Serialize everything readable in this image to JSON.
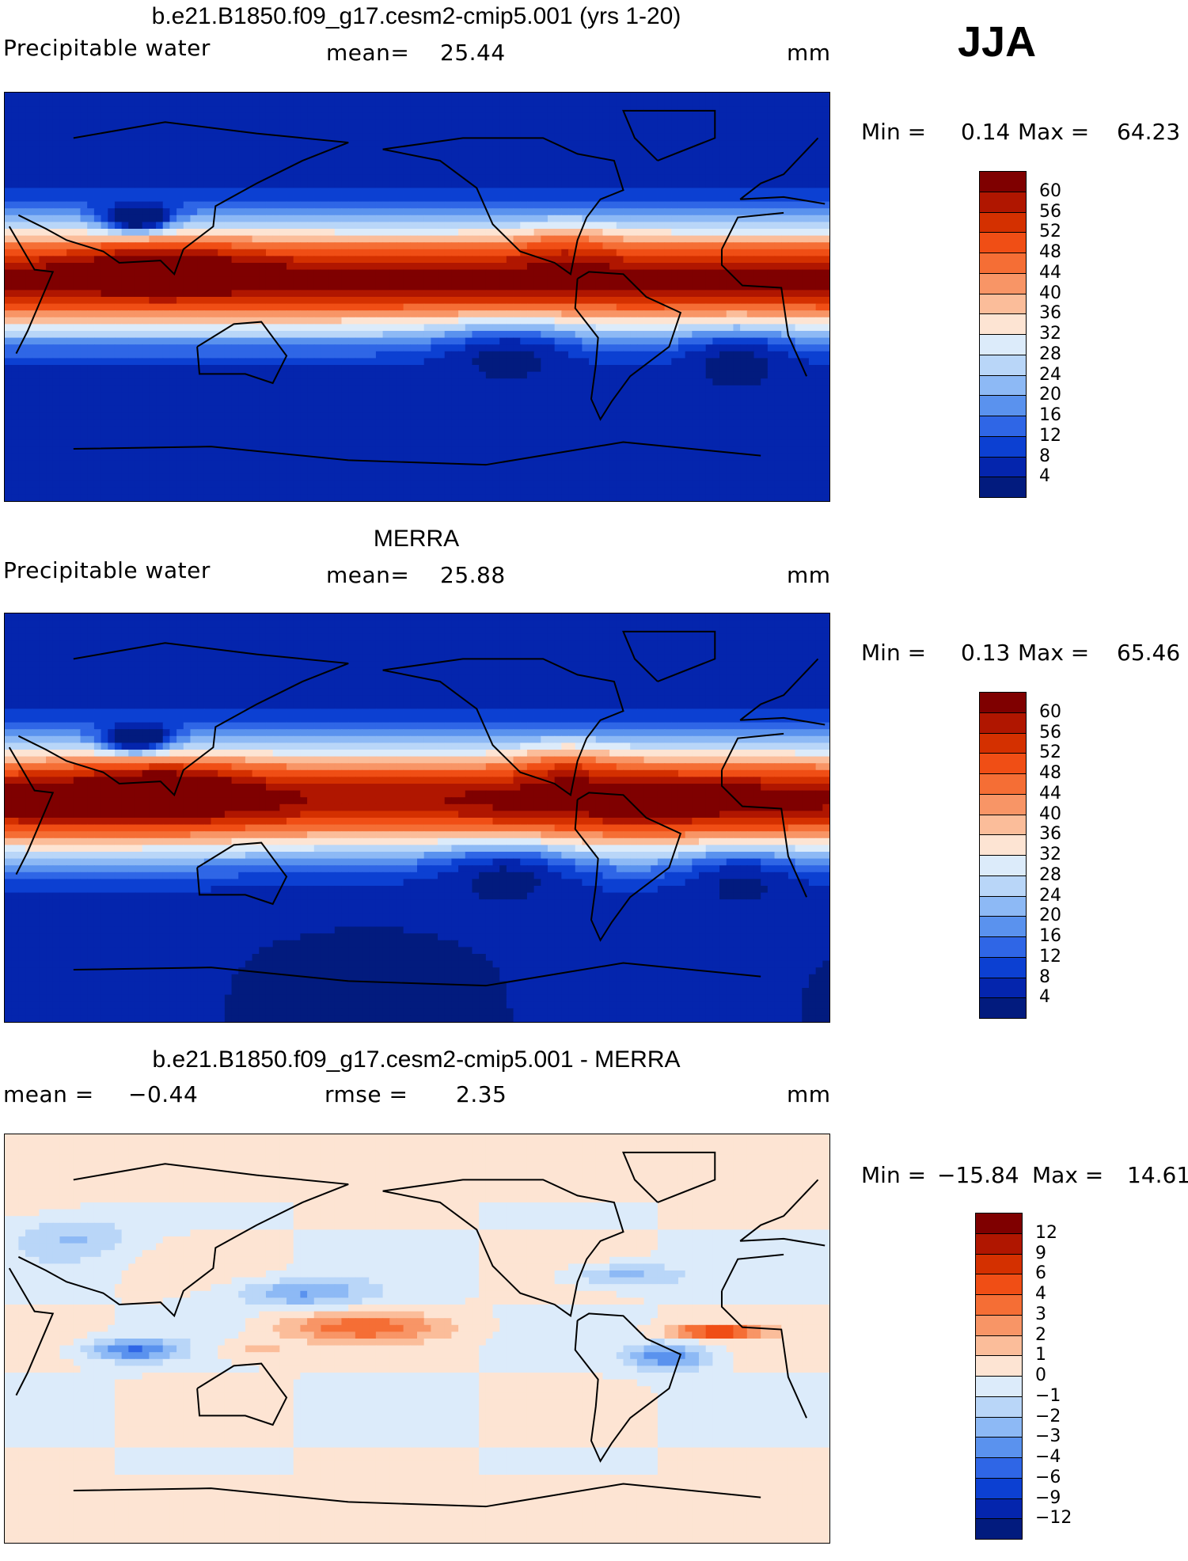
{
  "season": "JJA",
  "panels": [
    {
      "title": "b.e21.B1850.f09_g17.cesm2-cmip5.001 (yrs 1-20)",
      "left_label": "Precipitable water",
      "center_label": "mean=",
      "center_value": "25.44",
      "units": "mm",
      "stats_min_label": "Min =",
      "stats_min": "0.14",
      "stats_max_label": "Max =",
      "stats_max": "64.23",
      "levels": [
        "60",
        "56",
        "52",
        "48",
        "44",
        "40",
        "36",
        "32",
        "28",
        "24",
        "20",
        "16",
        "12",
        "8",
        "4"
      ],
      "colors": [
        "#7f0000",
        "#b01600",
        "#d43000",
        "#f04e15",
        "#f56e35",
        "#f89566",
        "#fbbd9a",
        "#fde4d3",
        "#dcebfa",
        "#b9d6f8",
        "#8db9f5",
        "#5a92ee",
        "#2f66e6",
        "#0c40d2",
        "#0425ad",
        "#021b7e"
      ],
      "field": "model"
    },
    {
      "title": "MERRA",
      "left_label": "Precipitable water",
      "center_label": "mean=",
      "center_value": "25.88",
      "units": "mm",
      "stats_min_label": "Min =",
      "stats_min": "0.13",
      "stats_max_label": "Max =",
      "stats_max": "65.46",
      "levels": [
        "60",
        "56",
        "52",
        "48",
        "44",
        "40",
        "36",
        "32",
        "28",
        "24",
        "20",
        "16",
        "12",
        "8",
        "4"
      ],
      "colors": [
        "#7f0000",
        "#b01600",
        "#d43000",
        "#f04e15",
        "#f56e35",
        "#f89566",
        "#fbbd9a",
        "#fde4d3",
        "#dcebfa",
        "#b9d6f8",
        "#8db9f5",
        "#5a92ee",
        "#2f66e6",
        "#0c40d2",
        "#0425ad",
        "#021b7e"
      ],
      "field": "obs"
    },
    {
      "title": "b.e21.B1850.f09_g17.cesm2-cmip5.001 - MERRA",
      "left_label": "mean =",
      "left_value": "−0.44",
      "center_label": "rmse =",
      "center_value": "2.35",
      "units": "mm",
      "stats_min_label": "Min =",
      "stats_min": "−15.84",
      "stats_max_label": "Max =",
      "stats_max": "14.61",
      "levels": [
        "12",
        "9",
        "6",
        "4",
        "3",
        "2",
        "1",
        "0",
        "−1",
        "−2",
        "−3",
        "−4",
        "−6",
        "−9",
        "−12"
      ],
      "colors": [
        "#7f0000",
        "#b01600",
        "#d43000",
        "#f04e15",
        "#f56e35",
        "#f89566",
        "#fbbd9a",
        "#fde4d3",
        "#dcebfa",
        "#b9d6f8",
        "#8db9f5",
        "#5a92ee",
        "#2f66e6",
        "#0c40d2",
        "#0425ad",
        "#021b7e"
      ],
      "field": "diff"
    }
  ]
}
